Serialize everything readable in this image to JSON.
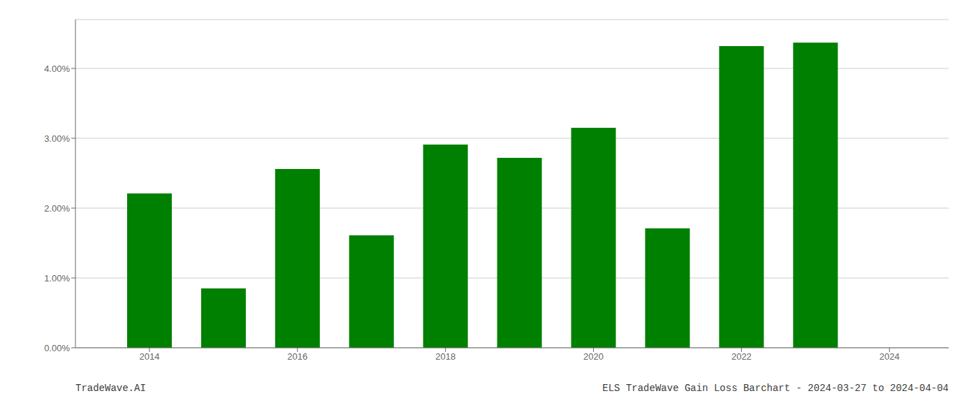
{
  "chart_data": {
    "type": "bar",
    "x": [
      2014,
      2015,
      2016,
      2017,
      2018,
      2019,
      2020,
      2021,
      2022,
      2023
    ],
    "values": [
      0.0221,
      0.0085,
      0.0256,
      0.0161,
      0.0291,
      0.0272,
      0.0315,
      0.0171,
      0.0432,
      0.0437
    ],
    "color": "#008000",
    "xlim": [
      2013.0,
      2024.8
    ],
    "xticks": [
      2014,
      2016,
      2018,
      2020,
      2022,
      2024
    ],
    "ylim": [
      0,
      0.047
    ],
    "yticks": [
      {
        "value": 0.0,
        "label": "0.00%"
      },
      {
        "value": 0.01,
        "label": "1.00%"
      },
      {
        "value": 0.02,
        "label": "2.00%"
      },
      {
        "value": 0.03,
        "label": "3.00%"
      },
      {
        "value": 0.04,
        "label": "4.00%"
      }
    ],
    "grid": true,
    "annotations": [
      "TradeWave.AI",
      "ELS TradeWave Gain Loss Barchart - 2024-03-27 to 2024-04-04"
    ]
  }
}
